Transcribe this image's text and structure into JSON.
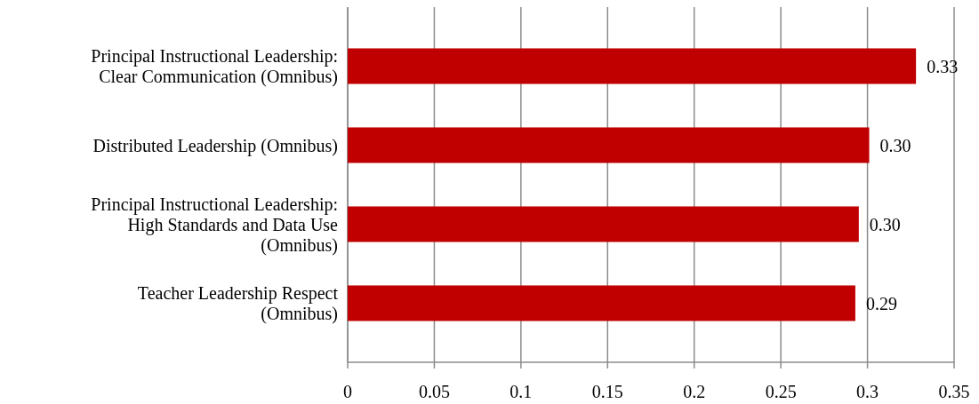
{
  "chart_data": {
    "type": "bar",
    "orientation": "horizontal",
    "categories": [
      "Principal Instructional Leadership:\nClear Communication (Omnibus)",
      "Distributed Leadership (Omnibus)",
      "Principal Instructional Leadership:\nHigh Standards and Data Use\n(Omnibus)",
      "Teacher Leadership Respect\n(Omnibus)"
    ],
    "values": [
      0.328,
      0.301,
      0.295,
      0.293
    ],
    "value_labels": [
      "0.33",
      "0.30",
      "0.30",
      "0.29"
    ],
    "color": "#c00000",
    "xlim": [
      0,
      0.35
    ],
    "xticks": [
      0,
      0.05,
      0.1,
      0.15,
      0.2,
      0.25,
      0.3,
      0.35
    ],
    "grid": "x"
  }
}
